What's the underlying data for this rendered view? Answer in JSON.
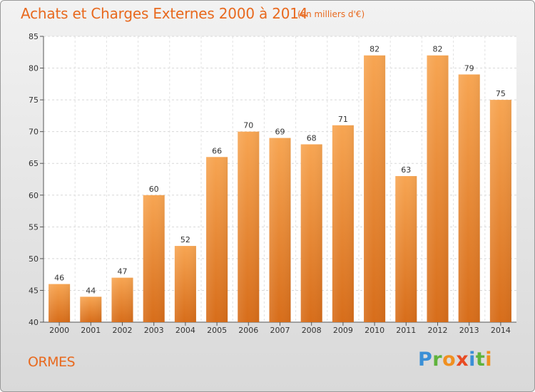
{
  "header": {
    "title": "Achats et Charges Externes 2000 à 2014",
    "subtitle": "(en milliers d'€)"
  },
  "footer": {
    "town": "ORMES",
    "logo": [
      "P",
      "r",
      "o",
      "x",
      "i",
      "t",
      "i"
    ]
  },
  "colors": {
    "accent": "#e8691e",
    "bar_top": "#f7a552",
    "bar_bottom": "#d76d1a",
    "logo_letters": [
      "#3a8fd6",
      "#5fb33c",
      "#f09020",
      "#e84b23",
      "#3a8fd6",
      "#5fb33c",
      "#f09020"
    ]
  },
  "chart_data": {
    "type": "bar",
    "title": "Achats et Charges Externes 2000 à 2014",
    "subtitle": "(en milliers d'€)",
    "xlabel": "",
    "ylabel": "",
    "categories": [
      "2000",
      "2001",
      "2002",
      "2003",
      "2004",
      "2005",
      "2006",
      "2007",
      "2008",
      "2009",
      "2010",
      "2011",
      "2012",
      "2013",
      "2014"
    ],
    "values": [
      46,
      44,
      47,
      60,
      52,
      66,
      70,
      69,
      68,
      71,
      82,
      63,
      82,
      79,
      75
    ],
    "ylim": [
      40,
      85
    ],
    "yticks": [
      40,
      45,
      50,
      55,
      60,
      65,
      70,
      75,
      80,
      85
    ],
    "grid": true,
    "legend": "none"
  }
}
